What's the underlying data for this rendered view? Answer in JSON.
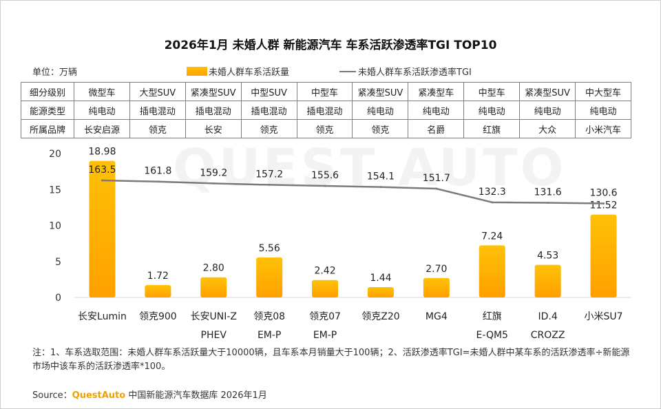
{
  "title": "2026年1月 未婚人群 新能源汽车 车系活跃渗透率TGI TOP10",
  "unit_label": "单位：万辆",
  "legend": {
    "bar": "未婚人群车系活跃量",
    "line": "未婚人群车系活跃渗透率TGI"
  },
  "watermark": "QUEST AUTO",
  "table": {
    "rows": [
      {
        "header": "细分级别",
        "cells": [
          "微型车",
          "大型SUV",
          "紧凑型SUV",
          "中型SUV",
          "中型车",
          "紧凑型SUV",
          "紧凑型车",
          "中型车",
          "紧凑型SUV",
          "中大型车"
        ]
      },
      {
        "header": "能源类型",
        "cells": [
          "纯电动",
          "插电混动",
          "插电混动",
          "插电混动",
          "插电混动",
          "纯电动",
          "纯电动",
          "纯电动",
          "纯电动",
          "纯电动"
        ]
      },
      {
        "header": "所属品牌",
        "cells": [
          "长安启源",
          "领克",
          "长安",
          "领克",
          "领克",
          "领克",
          "名爵",
          "红旗",
          "大众",
          "小米汽车"
        ]
      }
    ]
  },
  "chart_data": {
    "type": "bar",
    "title": "2026年1月 未婚人群 新能源汽车 车系活跃渗透率TGI TOP10",
    "categories": [
      [
        "长安Lumin"
      ],
      [
        "领克900"
      ],
      [
        "长安UNI-Z",
        "PHEV"
      ],
      [
        "领克08",
        "EM-P"
      ],
      [
        "领克07",
        "EM-P"
      ],
      [
        "领克Z20"
      ],
      [
        "MG4"
      ],
      [
        "红旗",
        "E-QM5"
      ],
      [
        "ID.4",
        "CROZZ"
      ],
      [
        "小米SU7"
      ]
    ],
    "series": [
      {
        "name": "未婚人群车系活跃量",
        "type": "bar",
        "values": [
          18.98,
          1.72,
          2.8,
          5.56,
          2.42,
          1.44,
          2.7,
          7.24,
          4.53,
          11.52
        ],
        "labels": [
          "18.98",
          "1.72",
          "2.80",
          "5.56",
          "2.42",
          "1.44",
          "2.70",
          "7.24",
          "4.53",
          "11.52"
        ],
        "color": "#ffb300"
      },
      {
        "name": "未婚人群车系活跃渗透率TGI",
        "type": "line",
        "values": [
          163.5,
          161.8,
          159.2,
          157.2,
          155.6,
          154.1,
          151.7,
          132.3,
          131.6,
          130.6
        ],
        "labels": [
          "163.5",
          "161.8",
          "159.2",
          "157.2",
          "155.6",
          "154.1",
          "151.7",
          "132.3",
          "131.6",
          "130.6"
        ],
        "color": "#7a7a7a"
      }
    ],
    "y_axis": {
      "min": 0,
      "max": 20,
      "ticks": [
        0,
        5,
        10,
        15,
        20
      ]
    },
    "legend_position": "top",
    "grid": false
  },
  "note": "注：1、车系选取范围：未婚人群车系活跃量大于10000辆，且车系本月销量大于100辆；2、活跃渗透率TGI=未婚人群中某车系的活跃渗透率÷新能源市场中该车系的活跃渗透率*100。",
  "source": {
    "prefix": "Source：",
    "brand": "QuestAuto",
    "rest": "中国新能源汽车数据库 2026年1月"
  }
}
